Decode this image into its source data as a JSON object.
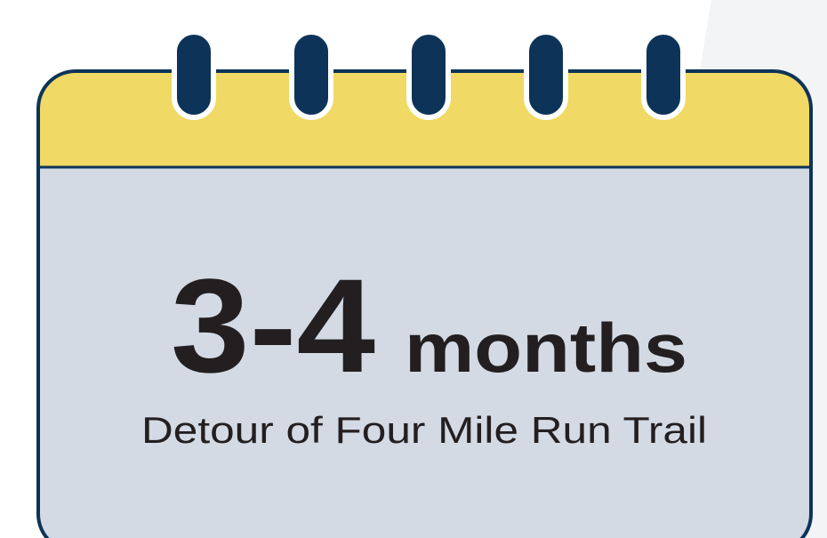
{
  "headline": {
    "number": "3-4",
    "unit": "months"
  },
  "caption": "Detour of Four Mile Run Trail"
}
